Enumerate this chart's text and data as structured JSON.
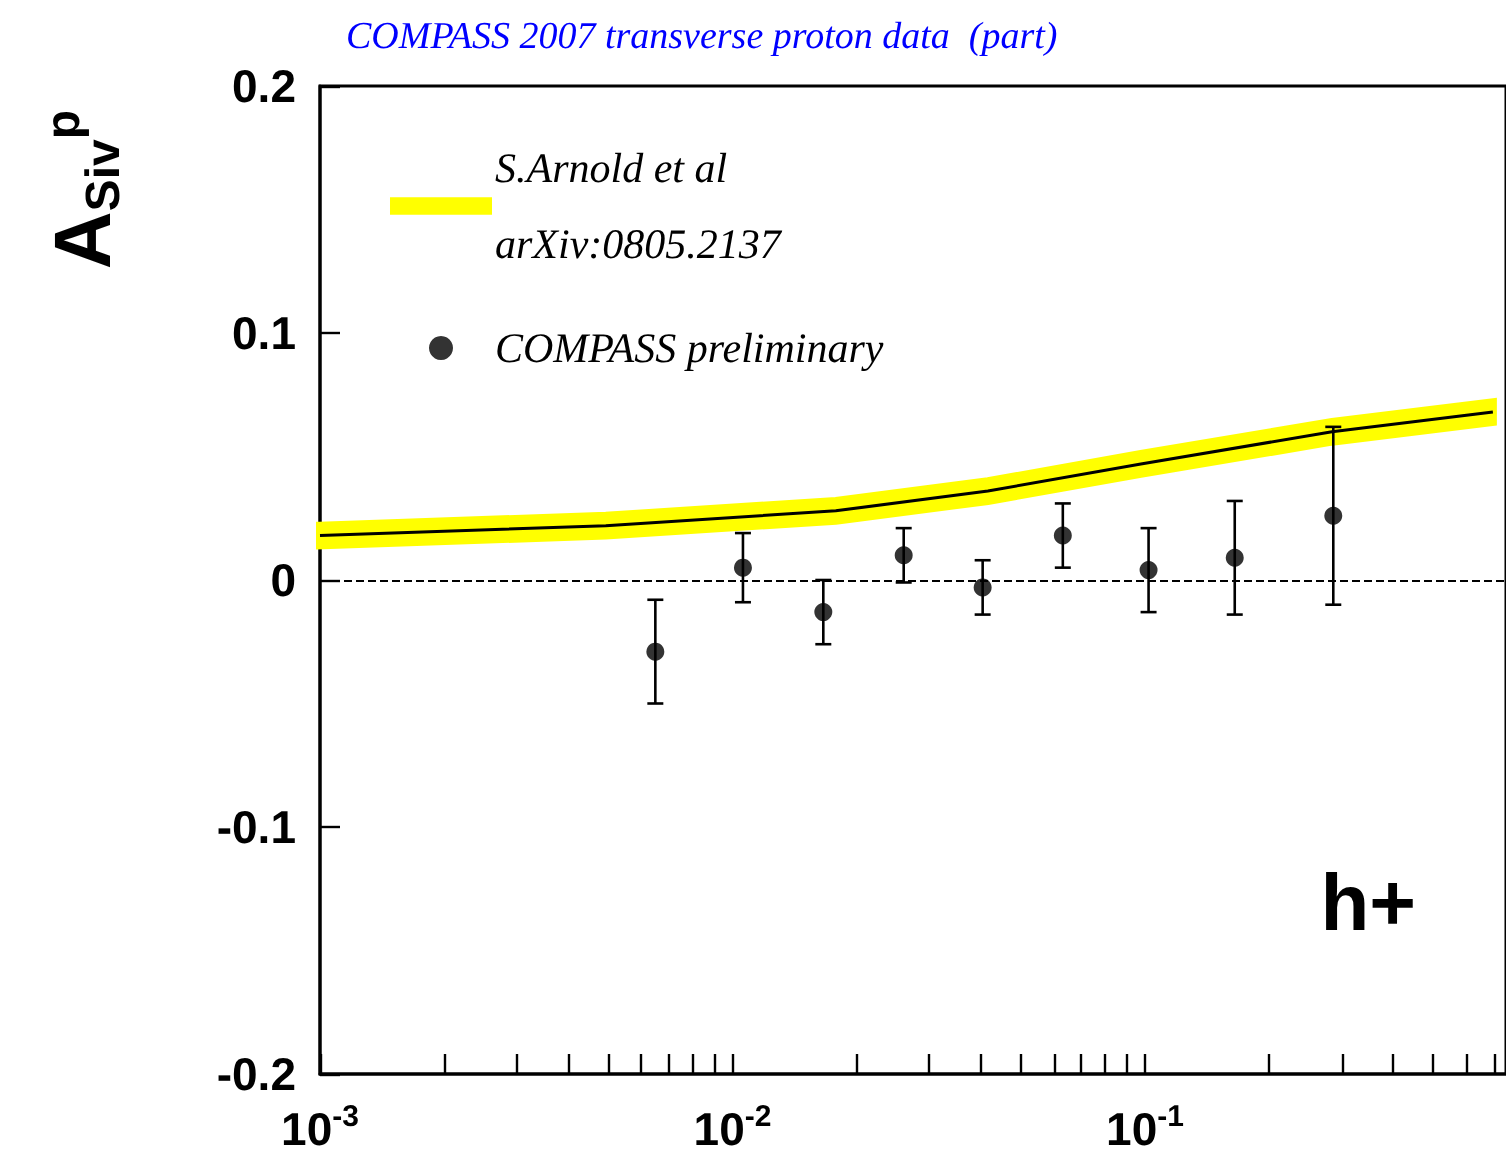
{
  "chart_data": {
    "type": "scatter",
    "title": "COMPASS 2007 transverse proton data  (part)",
    "ylabel": "A$_{Siv}$$^{p}$",
    "log": "x",
    "xlim": [
      0.001,
      0.75
    ],
    "xticks": [
      {
        "value": 0.001,
        "label": "10$^{-3}$"
      },
      {
        "value": 0.002,
        "label": null
      },
      {
        "value": 0.003,
        "label": null
      },
      {
        "value": 0.004,
        "label": null
      },
      {
        "value": 0.005,
        "label": null
      },
      {
        "value": 0.006,
        "label": null
      },
      {
        "value": 0.007,
        "label": null
      },
      {
        "value": 0.008,
        "label": null
      },
      {
        "value": 0.009,
        "label": null
      },
      {
        "value": 0.01,
        "label": "10$^{-2}$"
      },
      {
        "value": 0.02,
        "label": null
      },
      {
        "value": 0.03,
        "label": null
      },
      {
        "value": 0.04,
        "label": null
      },
      {
        "value": 0.05,
        "label": null
      },
      {
        "value": 0.06,
        "label": null
      },
      {
        "value": 0.07,
        "label": null
      },
      {
        "value": 0.08,
        "label": null
      },
      {
        "value": 0.09,
        "label": null
      },
      {
        "value": 0.1,
        "label": "10$^{-1}$"
      },
      {
        "value": 0.2,
        "label": null
      },
      {
        "value": 0.3,
        "label": null
      },
      {
        "value": 0.4,
        "label": null
      },
      {
        "value": 0.5,
        "label": null
      },
      {
        "value": 0.6,
        "label": null
      },
      {
        "value": 0.7,
        "label": null
      }
    ],
    "ylim": [
      -0.2,
      0.2
    ],
    "yticks": [
      -0.2,
      -0.1,
      0,
      0.1,
      0.2
    ],
    "series": [
      {
        "name": "S.Arnold et al\narXiv:0805.2137",
        "type": "line",
        "color": "#000000",
        "marker": "none",
        "x": [
          0.001,
          0.00493,
          0.0178,
          0.0416,
          0.0977,
          0.284,
          0.697
        ],
        "values": [
          0.018,
          0.022,
          0.028,
          0.036,
          0.047,
          0.06,
          0.068
        ],
        "lower": [
          0.014,
          0.018,
          0.024,
          0.032,
          0.043,
          0.056,
          0.064
        ],
        "upper": [
          0.022,
          0.026,
          0.032,
          0.04,
          0.051,
          0.064,
          0.072
        ]
      },
      {
        "name": "COMPASS preliminary",
        "color": "#000000",
        "marker": "circle",
        "x": [
          0.0065,
          0.0106,
          0.0166,
          0.026,
          0.0404,
          0.0632,
          0.102,
          0.165,
          0.286
        ],
        "values": [
          -0.029,
          0.005,
          -0.013,
          0.01,
          -0.003,
          0.018,
          0.004,
          0.009,
          0.026
        ],
        "errors": [
          0.021,
          0.014,
          0.013,
          0.011,
          0.011,
          0.013,
          0.017,
          0.023,
          0.036
        ]
      }
    ],
    "ref_lines": [
      {
        "axis": "y",
        "value": 0,
        "color": "#000000",
        "line_style": "dashed"
      }
    ],
    "annotations": [
      "h+"
    ],
    "legend": "top left",
    "grid": false
  }
}
